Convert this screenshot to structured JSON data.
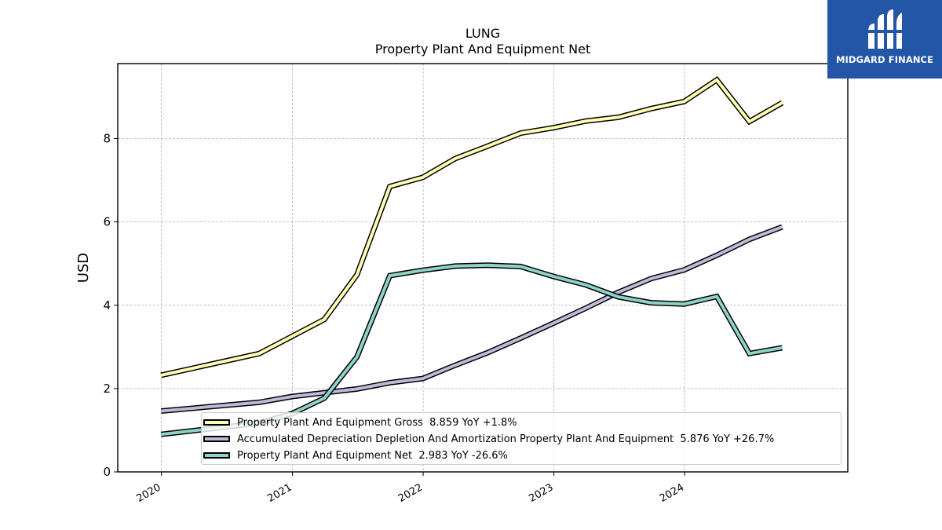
{
  "chart_data": {
    "type": "line",
    "title": "LUNG",
    "subtitle": "Property Plant And Equipment Net",
    "ylabel": "USD",
    "xlabel": "",
    "ylim": [
      0,
      9.8
    ],
    "xlim": [
      "2019-09-01",
      "2025-04-01"
    ],
    "yticks": [
      0,
      2,
      4,
      6,
      8
    ],
    "xticks": [
      {
        "label": "2020",
        "date": "2020-01-01"
      },
      {
        "label": "2021",
        "date": "2021-01-01"
      },
      {
        "label": "2022",
        "date": "2022-01-01"
      },
      {
        "label": "2023",
        "date": "2023-01-01"
      },
      {
        "label": "2024",
        "date": "2024-01-01"
      }
    ],
    "grid": true,
    "legend_position": "bottom-right",
    "series": [
      {
        "name": "Property Plant And Equipment Gross",
        "legend": "Property Plant And Equipment Gross  8.859 YoY +1.8%",
        "color": "#ffffb3",
        "points": [
          [
            "2019-12-31",
            2.32
          ],
          [
            "2020-09-30",
            2.84
          ],
          [
            "2021-03-31",
            3.66
          ],
          [
            "2021-06-30",
            4.73
          ],
          [
            "2021-09-30",
            6.85
          ],
          [
            "2021-12-31",
            7.07
          ],
          [
            "2022-03-31",
            7.52
          ],
          [
            "2022-06-30",
            7.82
          ],
          [
            "2022-09-30",
            8.13
          ],
          [
            "2022-12-31",
            8.26
          ],
          [
            "2023-03-31",
            8.42
          ],
          [
            "2023-06-30",
            8.51
          ],
          [
            "2023-09-30",
            8.72
          ],
          [
            "2023-12-31",
            8.89
          ],
          [
            "2024-03-31",
            9.41
          ],
          [
            "2024-06-30",
            8.41
          ],
          [
            "2024-09-30",
            8.86
          ]
        ]
      },
      {
        "name": "Accumulated Depreciation Depletion And Amortization Property Plant And Equipment",
        "legend": "Accumulated Depreciation Depletion And Amortization Property Plant And Equipment  5.876 YoY +26.7%",
        "color": "#bebada",
        "points": [
          [
            "2019-12-31",
            1.46
          ],
          [
            "2020-09-30",
            1.67
          ],
          [
            "2020-12-31",
            1.81
          ],
          [
            "2021-03-31",
            1.9
          ],
          [
            "2021-06-30",
            1.99
          ],
          [
            "2021-09-30",
            2.14
          ],
          [
            "2021-12-31",
            2.24
          ],
          [
            "2022-03-31",
            2.56
          ],
          [
            "2022-06-30",
            2.86
          ],
          [
            "2022-09-30",
            3.21
          ],
          [
            "2022-12-31",
            3.57
          ],
          [
            "2023-03-31",
            3.93
          ],
          [
            "2023-06-30",
            4.31
          ],
          [
            "2023-09-30",
            4.64
          ],
          [
            "2023-12-31",
            4.85
          ],
          [
            "2024-03-31",
            5.2
          ],
          [
            "2024-06-30",
            5.58
          ],
          [
            "2024-09-30",
            5.88
          ]
        ]
      },
      {
        "name": "Property Plant And Equipment Net",
        "legend": "Property Plant And Equipment Net  2.983 YoY -26.6%",
        "color": "#8dd3c7",
        "points": [
          [
            "2019-12-31",
            0.9
          ],
          [
            "2020-09-30",
            1.17
          ],
          [
            "2020-12-31",
            1.4
          ],
          [
            "2021-03-31",
            1.77
          ],
          [
            "2021-06-30",
            2.76
          ],
          [
            "2021-09-30",
            4.71
          ],
          [
            "2021-12-31",
            4.84
          ],
          [
            "2022-03-31",
            4.94
          ],
          [
            "2022-06-30",
            4.96
          ],
          [
            "2022-09-30",
            4.93
          ],
          [
            "2022-12-31",
            4.69
          ],
          [
            "2023-03-31",
            4.49
          ],
          [
            "2023-06-30",
            4.2
          ],
          [
            "2023-09-30",
            4.06
          ],
          [
            "2023-12-31",
            4.03
          ],
          [
            "2024-03-31",
            4.21
          ],
          [
            "2024-06-30",
            2.84
          ],
          [
            "2024-09-30",
            2.98
          ]
        ]
      }
    ]
  },
  "logo": {
    "text": "MIDGARD FINANCE",
    "color": "#2456a8"
  }
}
